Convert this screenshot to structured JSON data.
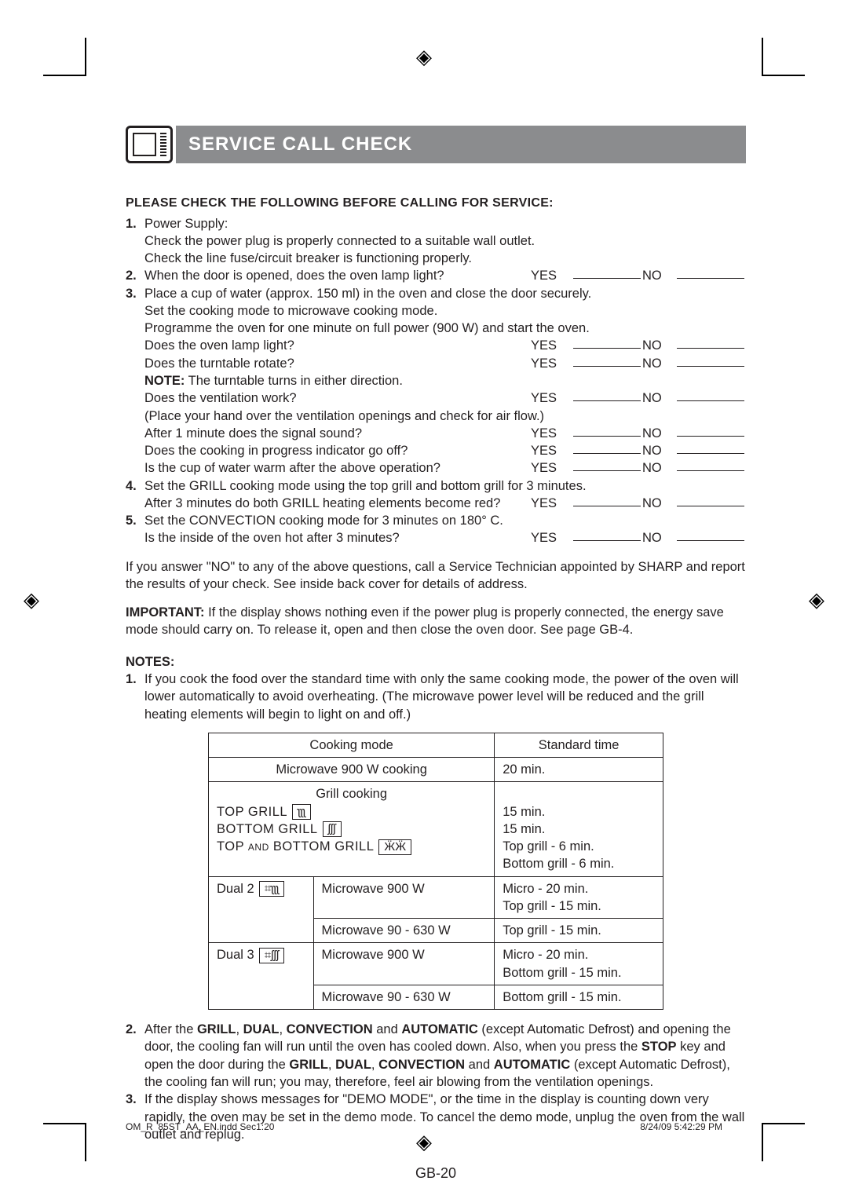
{
  "title": "SERVICE CALL CHECK",
  "section_head": "PLEASE CHECK THE FOLLOWING BEFORE CALLING FOR SERVICE:",
  "checks": {
    "c1": {
      "num": "1.",
      "l1": "Power Supply:",
      "l2": "Check the power plug is properly connected to a suitable wall outlet.",
      "l3": "Check the line fuse/circuit breaker is functioning properly."
    },
    "c2": {
      "num": "2.",
      "q": "When the door is opened, does the oven lamp light?"
    },
    "c3": {
      "num": "3.",
      "l1": "Place a cup of water (approx. 150 ml) in the oven and close the door securely.",
      "l2": "Set the cooking mode to microwave cooking mode.",
      "l3": "Programme the oven for one minute on full power (900 W) and start the oven.",
      "q1": "Does the oven lamp light?",
      "q2": "Does the turntable rotate?",
      "note_label": "NOTE:",
      "note_text": " The turntable turns in either direction.",
      "q3": "Does the ventilation work?",
      "l4": "(Place your hand over the ventilation openings and check for air flow.)",
      "q4": "After 1 minute does the signal sound?",
      "q5": "Does the cooking in progress indicator go off?",
      "q6": "Is the cup of water warm after the above operation?"
    },
    "c4": {
      "num": "4.",
      "l1": "Set the GRILL cooking mode using the top grill and bottom grill for 3 minutes.",
      "q": "After 3 minutes do both GRILL heating elements become red?"
    },
    "c5": {
      "num": "5.",
      "l1": "Set the CONVECTION cooking mode for 3 minutes on 180° C.",
      "q": "Is the inside of the oven hot after 3 minutes?"
    }
  },
  "yes": "YES",
  "no": "NO",
  "para1": "If you answer \"NO\" to any of the above questions, call a Service Technician appointed by SHARP and report the results of your check. See inside back cover for details of address.",
  "important_label": "IMPORTANT:",
  "important_text": " If the display shows nothing even if the power plug is properly connected, the energy save mode should carry on. To release it, open and then close the oven door. See page GB-4.",
  "notes_head": "NOTES:",
  "notes": {
    "n1": {
      "num": "1.",
      "text": "If you cook the food over the standard time with only the same cooking mode, the power of the oven will lower automatically to avoid overheating. (The microwave power level will be reduced and the grill heating elements will begin to light on and off.)"
    },
    "n2": {
      "num": "2.",
      "pre": "After the ",
      "b1": "GRILL",
      "s1": ", ",
      "b2": "DUAL",
      "s2": ", ",
      "b3": "CONVECTION",
      "s3": " and ",
      "b4": "AUTOMATIC",
      "mid": " (except Automatic Defrost) and opening the door, the cooling fan will run until the oven has cooled down. Also, when you press the ",
      "b5": "STOP",
      "mid2": " key and open the door during the ",
      "b6": "GRILL",
      "s4": ", ",
      "b7": "DUAL",
      "s5": ", ",
      "b8": "CONVECTION",
      "s6": " and ",
      "b9": "AUTOMATIC",
      "post": " (except Automatic Defrost), the cooling fan will run; you may, therefore, feel air blowing from the ventilation openings."
    },
    "n3": {
      "num": "3.",
      "text": "If the display shows messages for \"DEMO MODE\", or the time in the display is counting down very rapidly, the oven may be set in the demo mode. To cancel the demo mode, unplug the oven from the wall outlet and replug."
    }
  },
  "table": {
    "h1": "Cooking mode",
    "h2": "Standard time",
    "r1c1": "Microwave 900 W cooking",
    "r1c2": "20 min.",
    "grill_head": "Grill cooking",
    "top_grill": "TOP GRILL",
    "bottom_grill": "BOTTOM GRILL",
    "top_bottom_grill": "TOP and BOTTOM GRILL",
    "top_grill_sym": "ʅʅʅ",
    "bottom_grill_sym": "ʃʃʃ",
    "tb_grill_sym": "ӜӜ",
    "grill_t1": "15 min.",
    "grill_t2": "15 min.",
    "grill_t3": "Top grill - 6 min.",
    "grill_t4": "Bottom grill - 6 min.",
    "dual2": "Dual 2",
    "dual2_sym": "⌗ʅʅʅ",
    "dual2_a": "Microwave 900 W",
    "dual2_at1": "Micro - 20 min.",
    "dual2_at2": "Top grill - 15 min.",
    "dual2_b": "Microwave 90 - 630 W",
    "dual2_bt": "Top grill - 15 min.",
    "dual3": "Dual 3",
    "dual3_sym": "⌗ʃʃʃ",
    "dual3_a": "Microwave 900 W",
    "dual3_at1": "Micro - 20 min.",
    "dual3_at2": "Bottom grill - 15 min.",
    "dual3_b": "Microwave 90 - 630 W",
    "dual3_bt": "Bottom grill - 15 min."
  },
  "page_num": "GB-20",
  "footer_left": "OM_R_85ST_AA_EN.indd   Sec1:20",
  "footer_right": "8/24/09   5:42:29 PM"
}
